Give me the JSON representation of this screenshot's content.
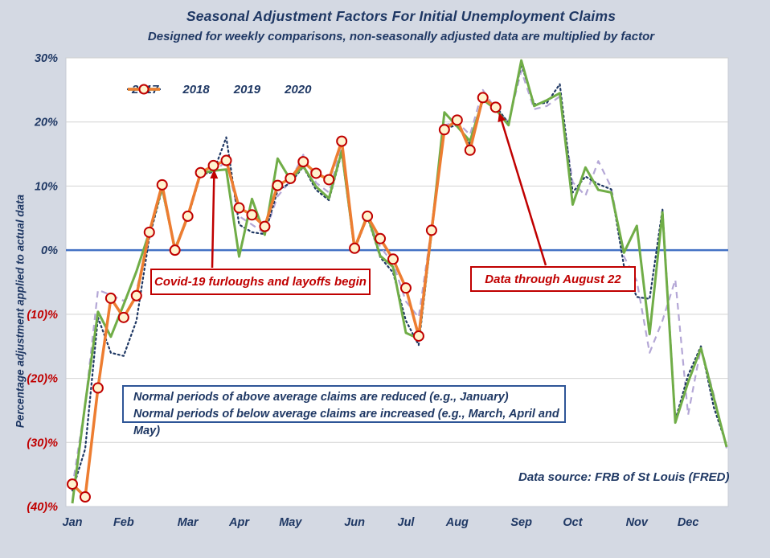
{
  "title": "Seasonal Adjustment Factors For Initial Unemployment Claims",
  "subtitle": "Designed for weekly comparisons, non-seasonally adjusted data are multiplied by factor",
  "y_axis": {
    "title": "Percentage adjustment applied to actual data",
    "ticks": [
      {
        "value": 30,
        "label": "30%",
        "color": "#1F3864"
      },
      {
        "value": 20,
        "label": "20%",
        "color": "#1F3864"
      },
      {
        "value": 10,
        "label": "10%",
        "color": "#1F3864"
      },
      {
        "value": 0,
        "label": "0%",
        "color": "#1F3864"
      },
      {
        "value": -10,
        "label": "(10)%",
        "color": "#C00000"
      },
      {
        "value": -20,
        "label": "(20)%",
        "color": "#C00000"
      },
      {
        "value": -30,
        "label": "(30)%",
        "color": "#C00000"
      },
      {
        "value": -40,
        "label": "(40)%",
        "color": "#C00000"
      }
    ]
  },
  "x_axis": {
    "months": [
      "Jan",
      "Feb",
      "Mar",
      "Apr",
      "May",
      "Jun",
      "Jul",
      "Aug",
      "Sep",
      "Oct",
      "Nov",
      "Dec"
    ],
    "month_start_weeks": [
      1,
      5,
      10,
      14,
      18,
      23,
      27,
      31,
      36,
      40,
      45,
      49
    ]
  },
  "legend": {
    "items": [
      {
        "label": "2017",
        "style": "solid",
        "color": "#70AD47"
      },
      {
        "label": "2018",
        "style": "dotted",
        "color": "#1F3864"
      },
      {
        "label": "2019",
        "style": "dashed",
        "color": "#B4A7D6"
      },
      {
        "label": "2020",
        "style": "solid-marker",
        "color": "#ED7D31"
      }
    ]
  },
  "annotations": {
    "covid": {
      "text": "Covid-19 furloughs and layoffs begin"
    },
    "data_through": {
      "text": "Data through August 22"
    },
    "normal_periods": {
      "line1": "Normal periods of above average claims are reduced (e.g., January)",
      "line2": "Normal periods of below average claims are increased (e.g., March, April and May)"
    }
  },
  "source_note": "Data source: FRB of St Louis (FRED)",
  "colors": {
    "background": "#d4d9e3",
    "plot_background": "#ffffff",
    "plot_border": "#c7ccd6",
    "gridline": "#d2d2d2",
    "zero_line": "#4472C4",
    "navy_text": "#1F3864",
    "red_accent": "#C00000",
    "marker_fill": "#FFF3CF",
    "series_2017": "#70AD47",
    "series_2018": "#1F3864",
    "series_2019": "#B4A7D6",
    "series_2020": "#ED7D31"
  },
  "chart_data": {
    "type": "line",
    "x_unit": "week_of_year",
    "x_range": [
      1,
      52
    ],
    "ylim": [
      -40,
      30
    ],
    "grid": "horizontal",
    "legend_position": "top-left-inside",
    "zero_reference_line": true,
    "title": "Seasonal Adjustment Factors For Initial Unemployment Claims",
    "ylabel": "Percentage adjustment applied to actual data",
    "series": [
      {
        "name": "2017",
        "style": "solid",
        "color": "#70AD47",
        "marker": false,
        "values": [
          -39.5,
          -24.0,
          -9.6,
          -13.5,
          -8.5,
          -3.3,
          2.8,
          9.7,
          0.2,
          5.3,
          12.0,
          12.4,
          12.6,
          -1.0,
          8.0,
          2.4,
          14.3,
          11.0,
          13.1,
          9.9,
          8.1,
          15.5,
          0.3,
          5.5,
          -0.9,
          -2.6,
          -12.9,
          -13.8,
          2.8,
          21.5,
          19.3,
          17.0,
          23.5,
          22.0,
          19.5,
          29.6,
          22.5,
          23.4,
          24.5,
          7.1,
          12.9,
          9.4,
          9.0,
          -0.4,
          3.8,
          -13.1,
          5.9,
          -26.9,
          -20.6,
          -15.3,
          -23.0,
          -30.7
        ]
      },
      {
        "name": "2018",
        "style": "dotted",
        "color": "#1F3864",
        "marker": false,
        "values": [
          -37.5,
          -31.0,
          -10.5,
          -16.0,
          -16.5,
          -11.0,
          2.0,
          9.5,
          0.0,
          5.0,
          11.8,
          12.2,
          17.6,
          4.0,
          2.8,
          2.5,
          9.3,
          10.5,
          13.0,
          9.4,
          7.8,
          15.2,
          0.0,
          5.2,
          -1.1,
          -3.5,
          -11.0,
          -14.8,
          2.5,
          19.0,
          19.5,
          16.5,
          23.3,
          22.5,
          19.8,
          29.0,
          22.8,
          23.0,
          25.9,
          9.0,
          11.5,
          10.3,
          9.5,
          -2.5,
          -7.3,
          -7.6,
          6.4,
          -26.5,
          -19.5,
          -15.0,
          -24.5,
          -30.4
        ]
      },
      {
        "name": "2019",
        "style": "dashed",
        "color": "#B4A7D6",
        "marker": false,
        "values": [
          -37.0,
          -24.0,
          -6.2,
          -7.0,
          -7.9,
          -6.3,
          2.5,
          10.0,
          0.3,
          5.5,
          12.2,
          12.0,
          14.0,
          5.3,
          4.0,
          2.6,
          8.4,
          10.8,
          14.9,
          10.5,
          9.0,
          16.3,
          0.5,
          5.0,
          0.5,
          -2.0,
          -8.0,
          -10.5,
          3.5,
          19.5,
          20.0,
          18.0,
          25.0,
          22.0,
          20.0,
          28.0,
          22.0,
          22.5,
          24.0,
          10.6,
          8.5,
          13.9,
          9.8,
          -1.0,
          -4.8,
          -16.0,
          -11.0,
          -4.6,
          -25.7,
          -15.2,
          -22.5,
          -30.9
        ]
      },
      {
        "name": "2020",
        "style": "solid",
        "color": "#ED7D31",
        "marker": true,
        "note": "Data through August 22",
        "values": [
          -36.5,
          -38.5,
          -21.5,
          -7.5,
          -10.5,
          -7.1,
          2.8,
          10.2,
          0.0,
          5.3,
          12.1,
          13.2,
          14.0,
          6.6,
          5.5,
          3.7,
          10.1,
          11.2,
          13.8,
          12.0,
          11.0,
          17.0,
          0.3,
          5.3,
          1.8,
          -1.4,
          -5.9,
          -13.4,
          3.1,
          18.8,
          20.3,
          15.6,
          23.8,
          22.3
        ]
      }
    ]
  }
}
